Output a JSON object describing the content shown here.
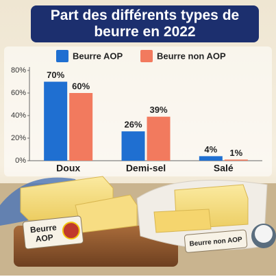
{
  "chart_data": {
    "type": "bar",
    "title": "Part des différents types de beurre en 2022",
    "categories": [
      "Doux",
      "Demi-sel",
      "Salé"
    ],
    "series": [
      {
        "name": "Beurre AOP",
        "color": "#1f6fd1",
        "values": [
          70,
          26,
          4
        ],
        "value_labels": [
          "70%",
          "26%",
          "4%"
        ]
      },
      {
        "name": "Beurre non AOP",
        "color": "#f27a5e",
        "values": [
          60,
          39,
          1
        ],
        "value_labels": [
          "60%",
          "39%",
          "1%"
        ]
      }
    ],
    "ylim": [
      0,
      80
    ],
    "yticks": [
      {
        "value": 0,
        "label": "0%"
      },
      {
        "value": 20,
        "label": "20%"
      },
      {
        "value": 40,
        "label": "40%"
      },
      {
        "value": 60,
        "label": "60%"
      },
      {
        "value": 80,
        "label": "80%"
      }
    ],
    "legend": "top",
    "annotations": [
      "Beurre AOP",
      "Beurre non AOP"
    ]
  }
}
